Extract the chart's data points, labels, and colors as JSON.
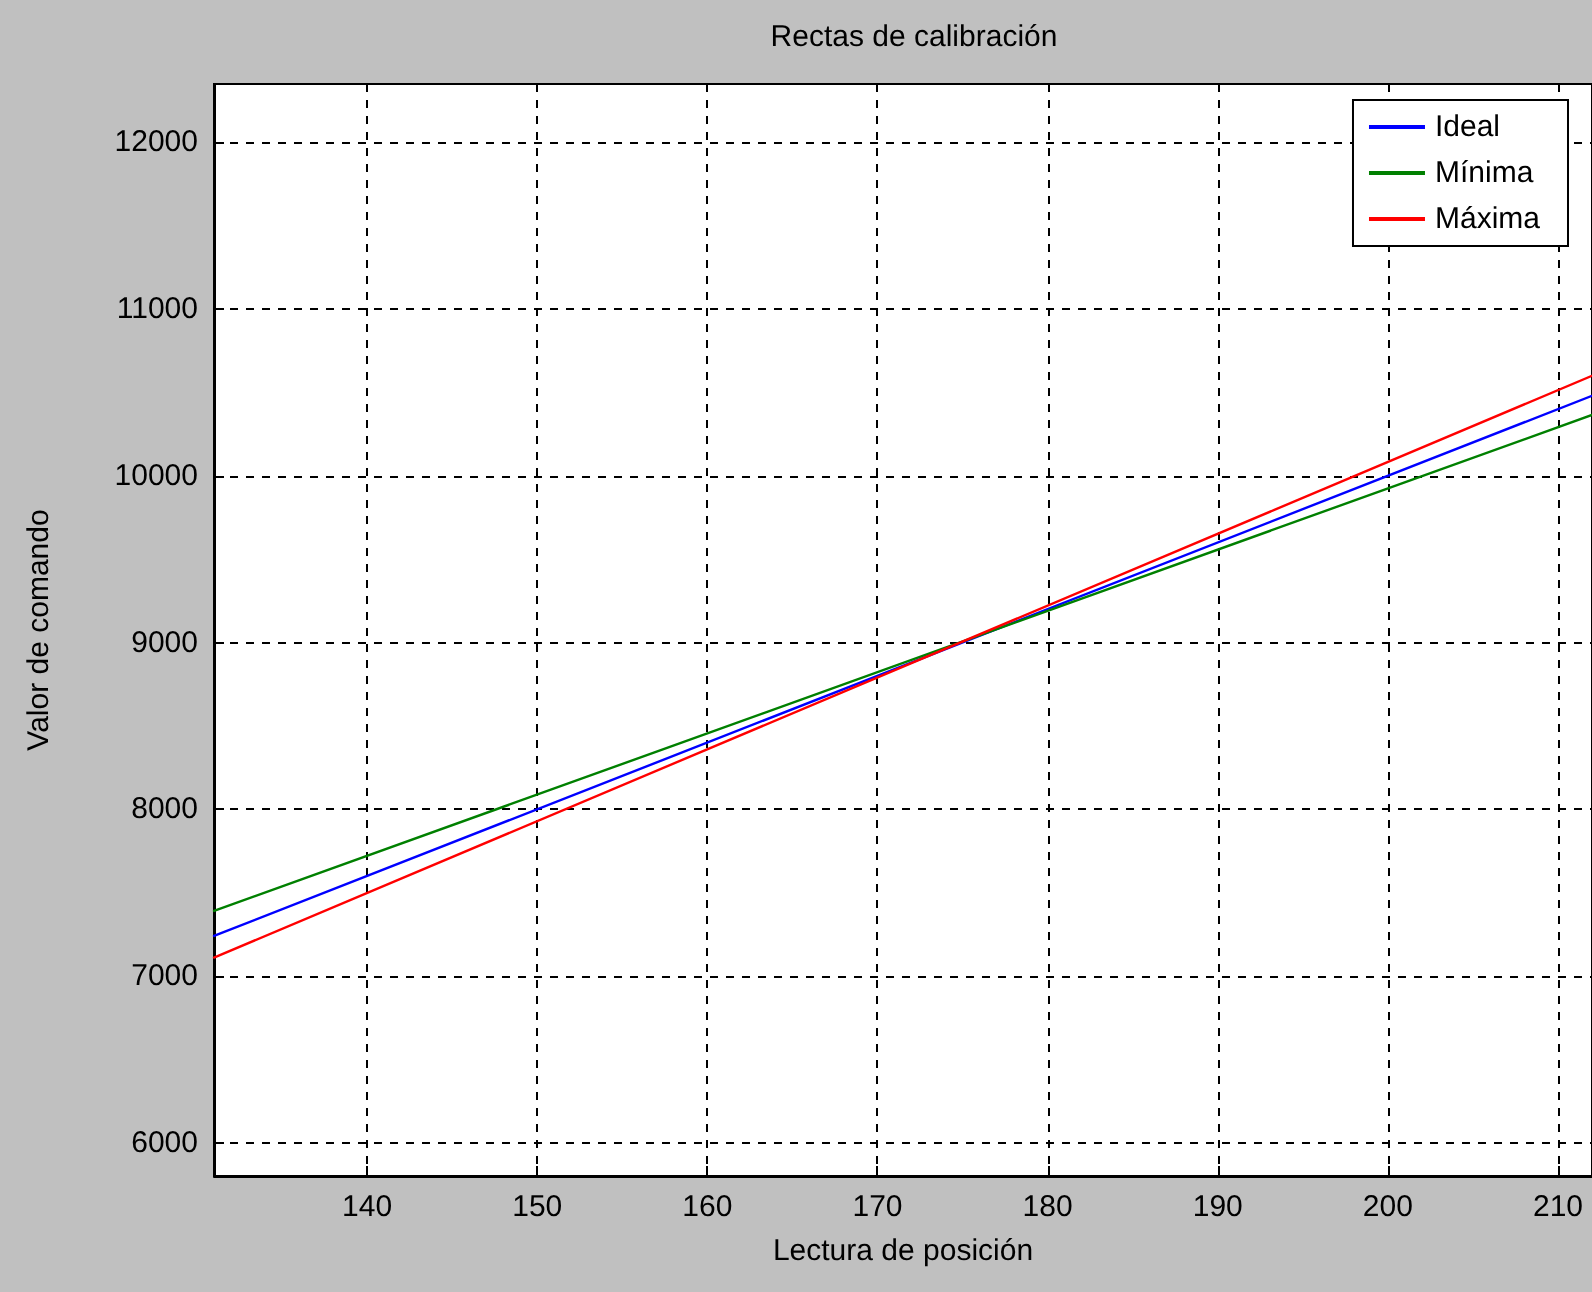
{
  "chart_data": {
    "type": "line",
    "title": "Rectas de calibración",
    "xlabel": "Lectura de posición",
    "ylabel": "Valor de comando",
    "x": [
      131,
      212
    ],
    "series": [
      {
        "name": "Ideal",
        "color": "#0000ff",
        "values": [
          7240,
          10480
        ]
      },
      {
        "name": "Mínima",
        "color": "#008000",
        "values": [
          7390,
          10365
        ]
      },
      {
        "name": "Máxima",
        "color": "#ff0000",
        "values": [
          7110,
          10600
        ]
      }
    ],
    "xlim": [
      131,
      212
    ],
    "xticks": [
      140,
      150,
      160,
      170,
      180,
      190,
      200,
      210
    ],
    "ylim": [
      5800,
      12350
    ],
    "yticks": [
      6000,
      7000,
      8000,
      9000,
      10000,
      11000,
      12000
    ],
    "grid": true,
    "legend": "top right",
    "marker": "none",
    "line_style": "solid"
  }
}
